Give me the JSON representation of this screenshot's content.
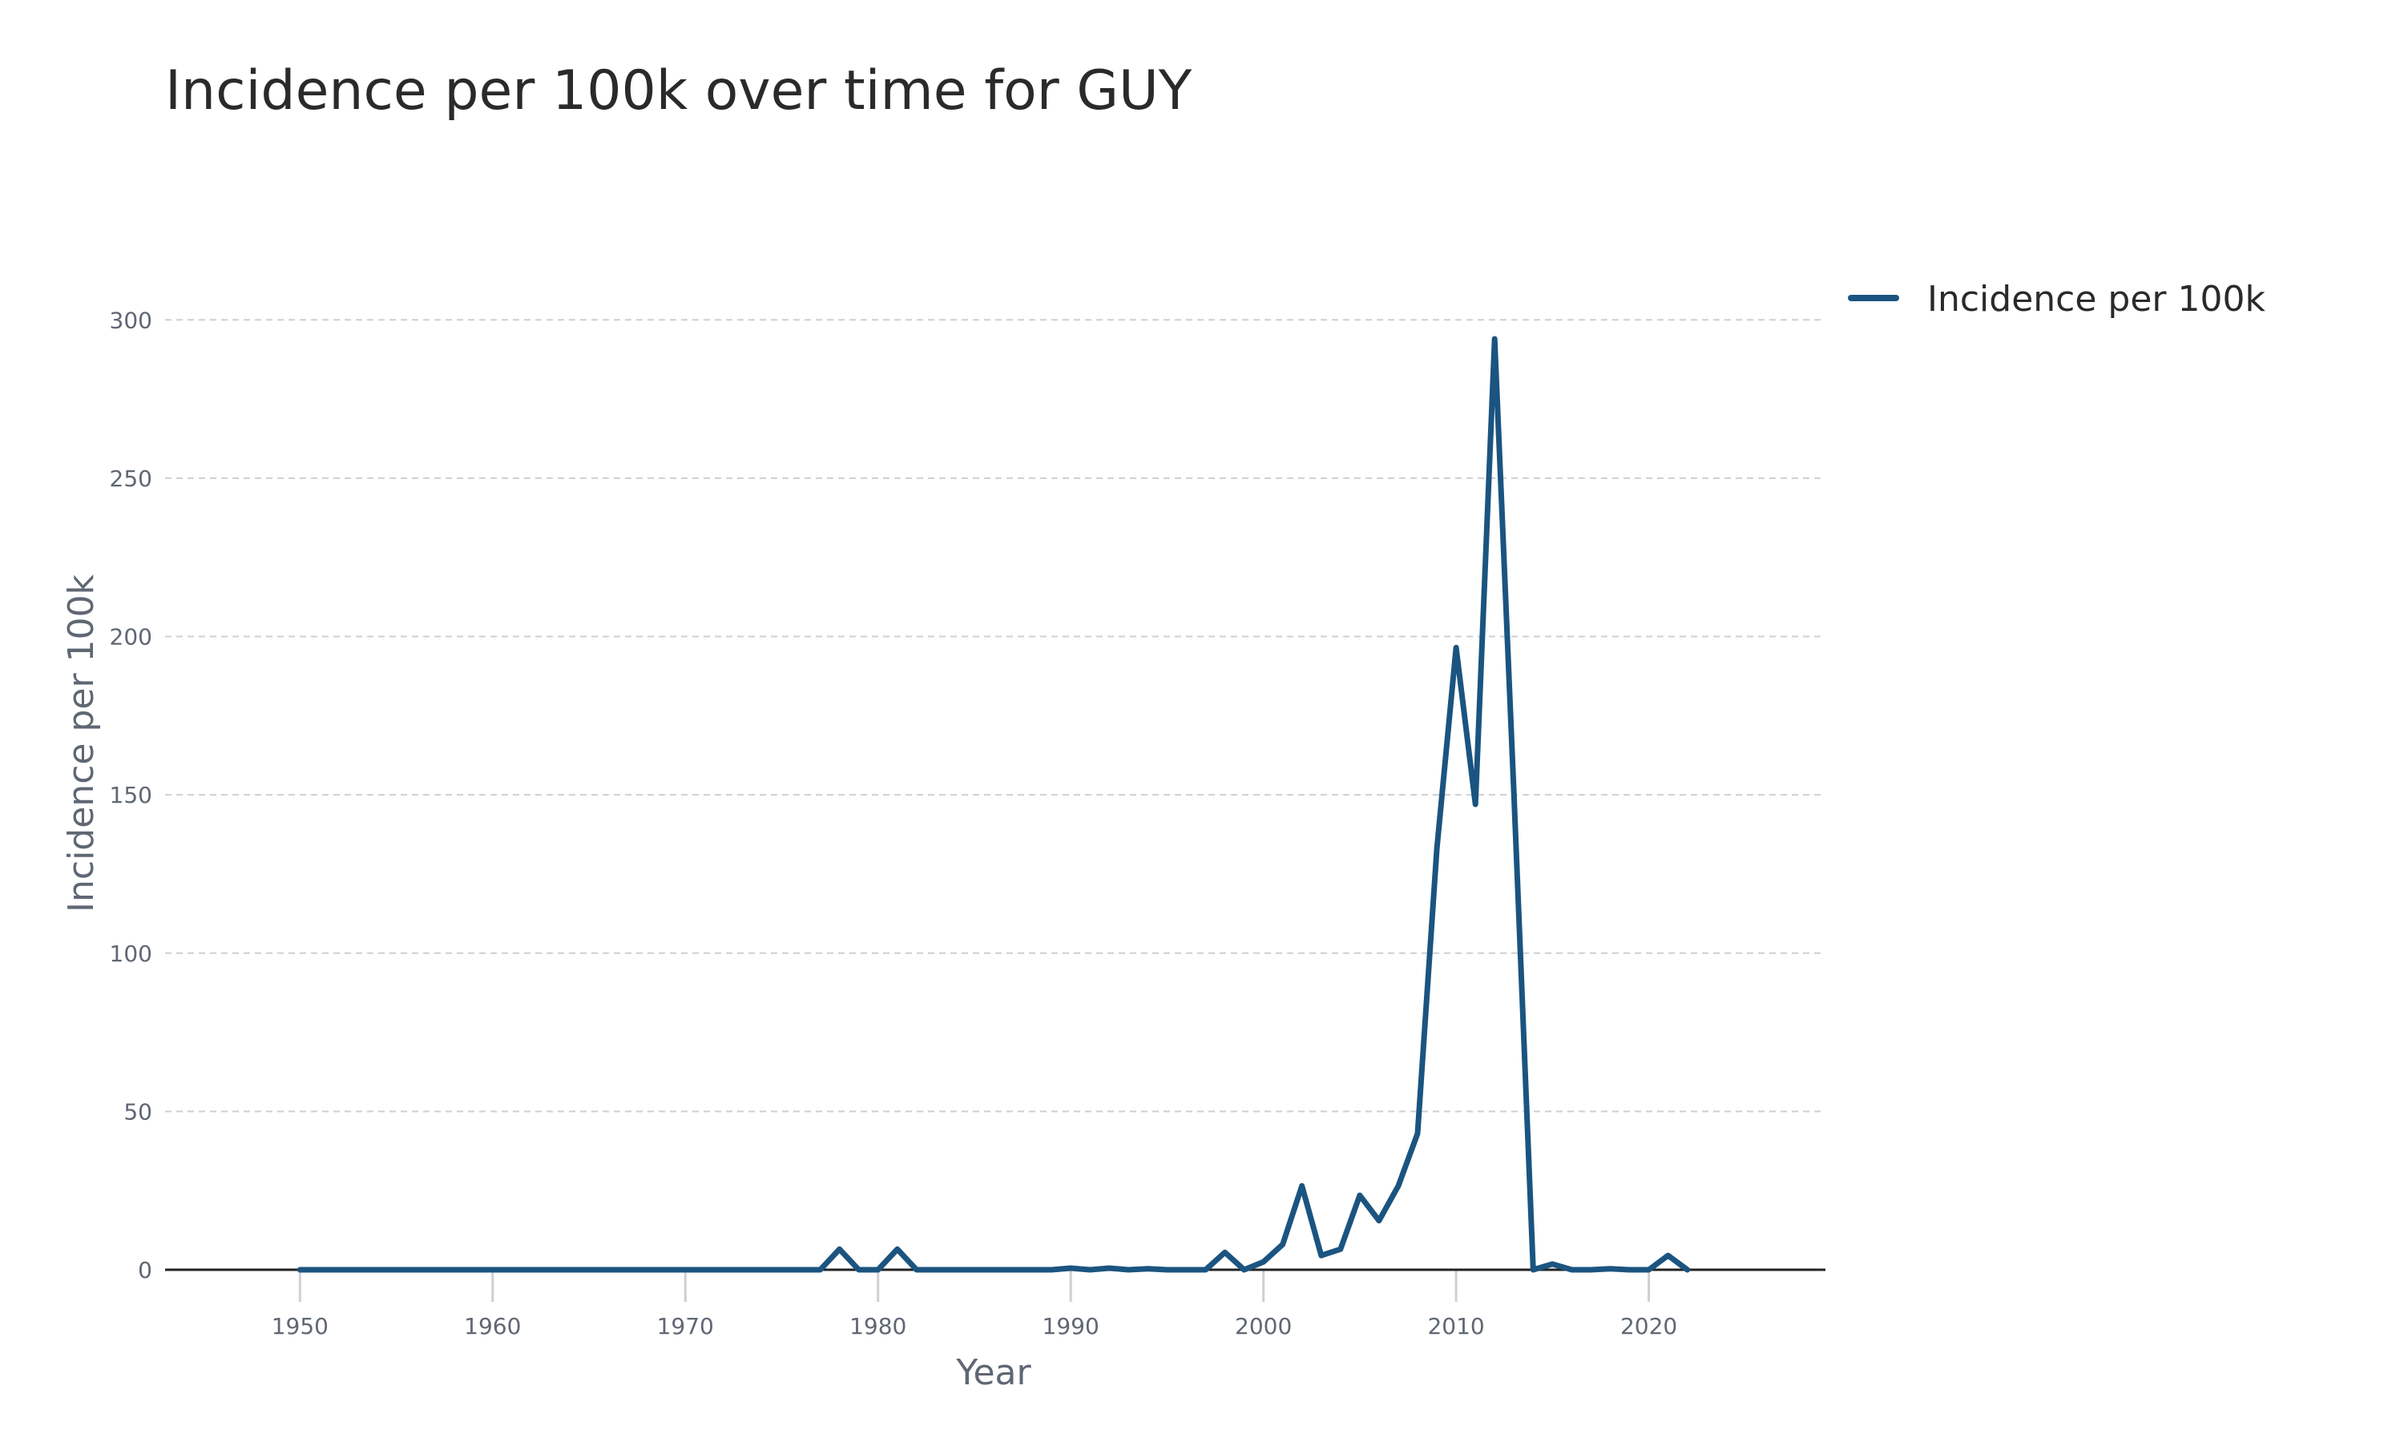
{
  "colors": {
    "series": "#1b5480"
  },
  "chart_data": {
    "type": "line",
    "title": "Incidence per 100k over time for GUY",
    "xlabel": "Year",
    "ylabel": "Incidence per 100k",
    "xlim": [
      1943,
      2029
    ],
    "ylim": [
      0,
      315
    ],
    "x_ticks": [
      1950,
      1960,
      1970,
      1980,
      1990,
      2000,
      2010,
      2020
    ],
    "y_ticks": [
      0,
      50,
      100,
      150,
      200,
      250,
      300
    ],
    "grid": true,
    "legend": "top-right",
    "series": [
      {
        "name": "Incidence per 100k",
        "x": [
          1950,
          1951,
          1952,
          1953,
          1954,
          1955,
          1956,
          1957,
          1958,
          1959,
          1960,
          1961,
          1962,
          1963,
          1964,
          1965,
          1966,
          1967,
          1968,
          1969,
          1970,
          1971,
          1972,
          1973,
          1974,
          1975,
          1976,
          1977,
          1978,
          1979,
          1980,
          1981,
          1982,
          1983,
          1984,
          1985,
          1986,
          1987,
          1988,
          1989,
          1990,
          1991,
          1992,
          1993,
          1994,
          1995,
          1996,
          1997,
          1998,
          1999,
          2000,
          2001,
          2002,
          2003,
          2004,
          2005,
          2006,
          2007,
          2008,
          2009,
          2010,
          2011,
          2012,
          2013,
          2014,
          2015,
          2016,
          2017,
          2018,
          2019,
          2020,
          2021,
          2022
        ],
        "y": [
          0,
          0,
          0,
          0,
          0,
          0,
          0,
          0,
          0,
          0,
          0,
          0,
          0,
          0,
          0,
          0,
          0,
          0,
          0,
          0,
          0,
          0,
          0,
          0,
          0,
          0,
          0,
          0,
          6.5,
          0,
          0,
          6.5,
          0,
          0,
          0,
          0,
          0,
          0,
          0,
          0,
          0.5,
          0,
          0.5,
          0,
          0.3,
          0,
          0,
          0,
          5.5,
          0,
          2.5,
          8,
          26.5,
          4.5,
          6.5,
          23.5,
          15.5,
          26.5,
          43,
          133,
          196.5,
          147,
          294,
          150,
          0,
          1.8,
          0,
          0,
          0.3,
          0,
          0,
          4.5,
          0
        ]
      }
    ]
  }
}
